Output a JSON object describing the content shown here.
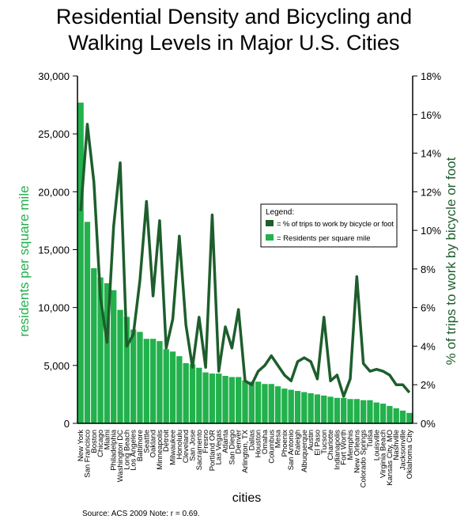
{
  "chart_data": {
    "type": "bar",
    "title": [
      "Residential Density and Bicycling and",
      "Walking Levels in Major U.S. Cities"
    ],
    "y_label": "residents per square mile",
    "y2_label": "% of trips to work by bicycle or foot",
    "x_label": "cities",
    "source": "Source: ACS 2009 Note: r = 0.69.",
    "legend_title": "Legend:",
    "categories": [
      "New York",
      "San Francisco",
      "Boston",
      "Chicago",
      "Miami",
      "Philadelphia",
      "Washington DC",
      "Long Beach",
      "Los Angeles",
      "Baltimore",
      "Seattle",
      "Oakland",
      "Minneapolis",
      "Detroit",
      "Milwaukee",
      "Honolulu",
      "Cleveland",
      "San Jose",
      "Sacramento",
      "Fresno",
      "Portland OR",
      "Las Vegas",
      "Atlanta",
      "San Diego",
      "Denver",
      "Arlington, TX",
      "Dallas",
      "Houston",
      "Omaha",
      "Columbus",
      "Mesa",
      "Phoenix",
      "San Antonio",
      "Raleigh",
      "Albuquerque",
      "Austin",
      "El Paso",
      "Tucson",
      "Charlotte",
      "Indianapolis",
      "Fort Worth",
      "Memphis",
      "New Orleans",
      "Colorado Springs",
      "Tulsa",
      "Louisville",
      "Virginia Beach",
      "Kansas City, MO",
      "Nashville",
      "Jacksonville",
      "Oklahoma City"
    ],
    "series": [
      {
        "name": "= % of trips to work by bicycle or foot",
        "type": "line",
        "axis": "y2",
        "color": "#1d5e2c",
        "values": [
          11.0,
          15.5,
          12.5,
          6.5,
          4.2,
          10.2,
          13.5,
          4.0,
          4.6,
          7.4,
          11.5,
          6.6,
          10.5,
          3.9,
          5.4,
          9.7,
          5.1,
          2.9,
          5.5,
          2.9,
          10.8,
          2.7,
          5.0,
          3.9,
          5.9,
          2.2,
          2.0,
          2.7,
          3.0,
          3.5,
          3.0,
          2.5,
          2.2,
          3.2,
          3.4,
          3.2,
          2.3,
          5.5,
          2.2,
          2.5,
          1.4,
          2.3,
          7.6,
          3.1,
          2.7,
          2.8,
          2.7,
          2.5,
          2.0,
          2.0,
          1.6
        ]
      },
      {
        "name": "= Residents per square mile",
        "type": "bar",
        "color": "#22b14c",
        "values": [
          27700,
          17400,
          13400,
          12600,
          12100,
          11500,
          9800,
          9200,
          8100,
          7900,
          7300,
          7300,
          7100,
          6400,
          6200,
          5800,
          5200,
          5100,
          4800,
          4400,
          4300,
          4300,
          4100,
          4000,
          4000,
          3700,
          3600,
          3600,
          3400,
          3400,
          3200,
          3000,
          2900,
          2800,
          2700,
          2600,
          2500,
          2400,
          2300,
          2200,
          2200,
          2100,
          2100,
          2000,
          2000,
          1800,
          1700,
          1500,
          1300,
          1100,
          900
        ]
      }
    ],
    "ylim": [
      0,
      30000
    ],
    "yticks": [
      0,
      {
        "value": 5000,
        "label": "5,000"
      },
      {
        "value": 10000,
        "label": "10,000"
      },
      {
        "value": 15000,
        "label": "15,000"
      },
      {
        "value": 20000,
        "label": "20,000"
      },
      {
        "value": 25000,
        "label": "25,000"
      },
      {
        "value": 30000,
        "label": "30,000"
      }
    ],
    "y2lim": [
      0,
      18
    ],
    "y2ticks": [
      {
        "value": 0,
        "label": "0%"
      },
      {
        "value": 2,
        "label": "2%"
      },
      {
        "value": 4,
        "label": "4%"
      },
      {
        "value": 6,
        "label": "6%"
      },
      {
        "value": 8,
        "label": "8%"
      },
      {
        "value": 10,
        "label": "10%"
      },
      {
        "value": 12,
        "label": "12%"
      },
      {
        "value": 14,
        "label": "14%"
      },
      {
        "value": 16,
        "label": "16%"
      },
      {
        "value": 18,
        "label": "18%"
      }
    ]
  }
}
